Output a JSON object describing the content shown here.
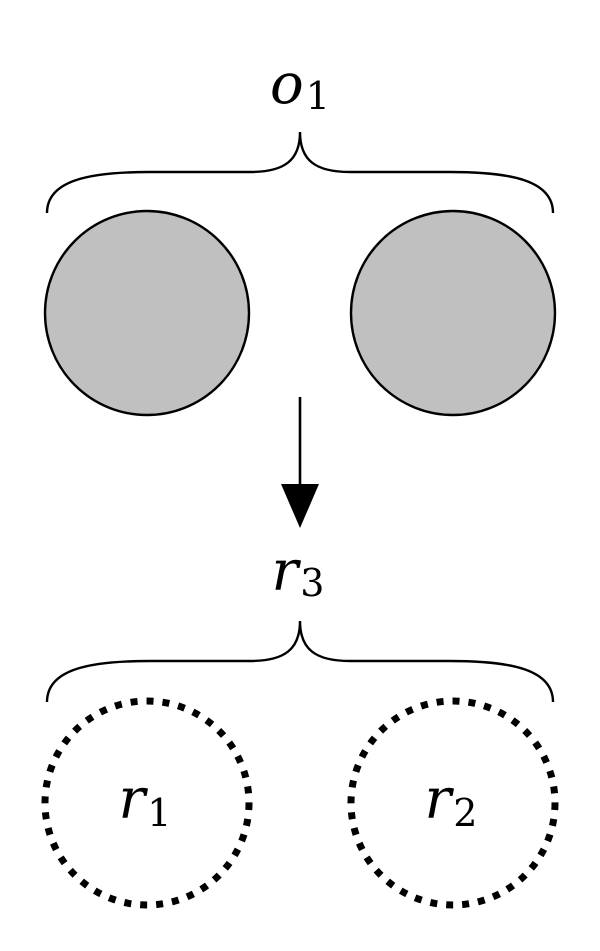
{
  "colors": {
    "stroke": "#000000",
    "filled_circle": "#c0c0c0",
    "background": "#ffffff"
  },
  "top_group": {
    "label": {
      "base": "o",
      "sub": "1"
    }
  },
  "bottom_group": {
    "label": {
      "base": "r",
      "sub": "3"
    },
    "left_region": {
      "base": "r",
      "sub": "1"
    },
    "right_region": {
      "base": "r",
      "sub": "2"
    }
  }
}
